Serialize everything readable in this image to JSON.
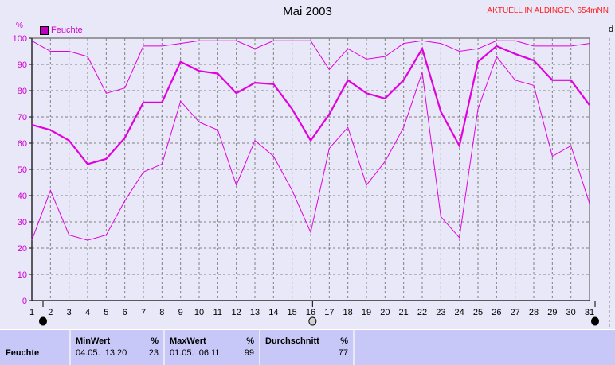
{
  "header": {
    "title": "Mai 2003",
    "station": "AKTUELL IN ALDINGEN 654mNN",
    "unit": "%",
    "right_label": "d"
  },
  "colors": {
    "series": "#e000e0",
    "grid": "#808080",
    "background": "#e8e8f8",
    "panel": "#c8c8f8"
  },
  "chart_data": {
    "type": "line",
    "title": "Mai 2003",
    "ylabel": "%",
    "ylim": [
      0,
      100
    ],
    "yticks": [
      0,
      10,
      20,
      30,
      40,
      50,
      60,
      70,
      80,
      90,
      100
    ],
    "x": [
      1,
      2,
      3,
      4,
      5,
      6,
      7,
      8,
      9,
      10,
      11,
      12,
      13,
      14,
      15,
      16,
      17,
      18,
      19,
      20,
      21,
      22,
      23,
      24,
      25,
      26,
      27,
      28,
      29,
      30,
      31
    ],
    "grid": true,
    "legend": {
      "entries": [
        "Feuchte"
      ],
      "placement": "top-left"
    },
    "series": [
      {
        "name": "Feuchte",
        "role": "average",
        "values": [
          67,
          65,
          61,
          52,
          54,
          62,
          75.5,
          75.5,
          91,
          87.5,
          86.5,
          79,
          83,
          82.5,
          73,
          61,
          71,
          84,
          79,
          77,
          84,
          96,
          72,
          59,
          91,
          97,
          94,
          91.5,
          84,
          84,
          74.5
        ]
      },
      {
        "role": "max",
        "values": [
          99,
          95,
          95,
          93,
          79,
          81,
          97,
          97,
          98,
          99,
          99,
          99,
          96,
          99,
          99,
          99,
          88,
          96,
          92,
          93,
          98,
          99,
          98,
          95,
          96,
          99,
          99,
          97,
          97,
          97,
          98
        ]
      },
      {
        "role": "min",
        "values": [
          23,
          42,
          25,
          23,
          25,
          38,
          49,
          52,
          76,
          68,
          65,
          44,
          61,
          55,
          42,
          26,
          58,
          66,
          44,
          53,
          66,
          87,
          32,
          24,
          73,
          93,
          84,
          82,
          55,
          59,
          37
        ]
      }
    ],
    "moon_phases": [
      {
        "day": 1.6,
        "phase": "new-moon"
      },
      {
        "day": 16.1,
        "phase": "full-moon"
      },
      {
        "day": 31.3,
        "phase": "new-moon"
      }
    ]
  },
  "stats": {
    "row_label": "Feuchte",
    "min": {
      "header": "MinWert",
      "unit": "%",
      "time": "04.05.  13:20",
      "value": "23"
    },
    "max": {
      "header": "MaxWert",
      "unit": "%",
      "time": "01.05.  06:11",
      "value": "99"
    },
    "avg": {
      "header": "Durchschnitt",
      "unit": "%",
      "value": "77"
    }
  }
}
